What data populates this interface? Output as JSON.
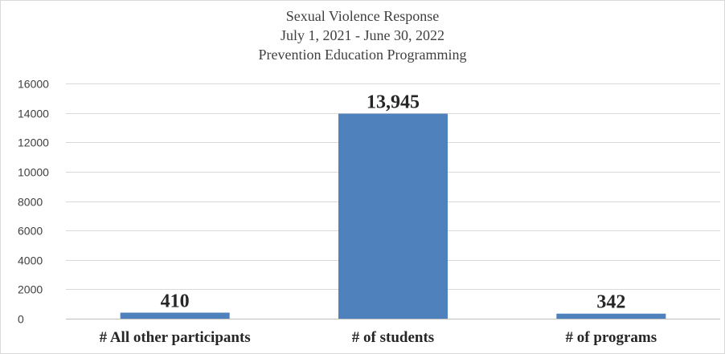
{
  "chart_data": {
    "type": "bar",
    "title_lines": [
      "Sexual Violence Response",
      "July 1, 2021 - June 30, 2022",
      "Prevention Education Programming"
    ],
    "categories": [
      "# All other participants",
      "# of students",
      "# of programs"
    ],
    "values": [
      410,
      13945,
      342
    ],
    "data_labels": [
      "410",
      "13,945",
      "342"
    ],
    "ylim": [
      0,
      16000
    ],
    "yticks": [
      0,
      2000,
      4000,
      6000,
      8000,
      10000,
      12000,
      14000,
      16000
    ],
    "xlabel": "",
    "ylabel": "",
    "grid": true,
    "bar_color": "#4f81bd",
    "gridline_color": "#d9d9d9"
  }
}
